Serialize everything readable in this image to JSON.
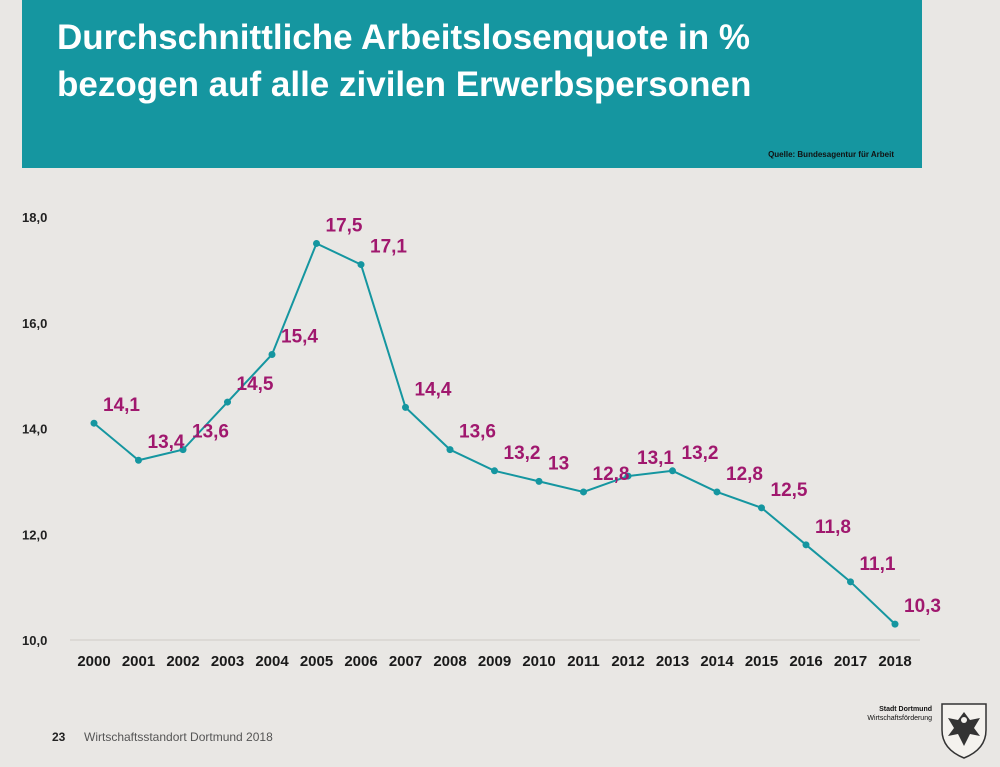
{
  "header": {
    "title_line1": "Durchschnittliche Arbeitslosenquote in %",
    "title_line2": "bezogen auf alle zivilen Erwerbspersonen",
    "source": "Quelle: Bundesagentur für Arbeit"
  },
  "footer": {
    "page_number": "23",
    "text": "Wirtschaftsstandort Dortmund 2018",
    "brand_line1": "Stadt Dortmund",
    "brand_line2": "Wirtschaftsförderung"
  },
  "colors": {
    "banner": "#1596a0",
    "line": "#1596a0",
    "label": "#a0186e",
    "background": "#e9e7e4"
  },
  "chart_data": {
    "type": "line",
    "title": "Durchschnittliche Arbeitslosenquote in % bezogen auf alle zivilen Erwerbspersonen",
    "x": [
      "2000",
      "2001",
      "2002",
      "2003",
      "2004",
      "2005",
      "2006",
      "2007",
      "2008",
      "2009",
      "2010",
      "2011",
      "2012",
      "2013",
      "2014",
      "2015",
      "2016",
      "2017",
      "2018"
    ],
    "values": [
      14.1,
      13.4,
      13.6,
      14.5,
      15.4,
      17.5,
      17.1,
      14.4,
      13.6,
      13.2,
      13.0,
      12.8,
      13.1,
      13.2,
      12.8,
      12.5,
      11.8,
      11.1,
      10.3
    ],
    "data_labels": [
      "14,1",
      "13,4",
      "13,6",
      "14,5",
      "15,4",
      "17,5",
      "17,1",
      "14,4",
      "13,6",
      "13,2",
      "13",
      "12,8",
      "13,1",
      "13,2",
      "12,8",
      "12,5",
      "11,8",
      "11,1",
      "10,3"
    ],
    "yticks": [
      10,
      12,
      14,
      16,
      18
    ],
    "ytick_labels": [
      "10,0",
      "12,0",
      "14,0",
      "16,0",
      "18,0"
    ],
    "ylim": [
      10,
      18
    ],
    "xlabel": "",
    "ylabel": "",
    "grid": false,
    "legend": "none"
  }
}
